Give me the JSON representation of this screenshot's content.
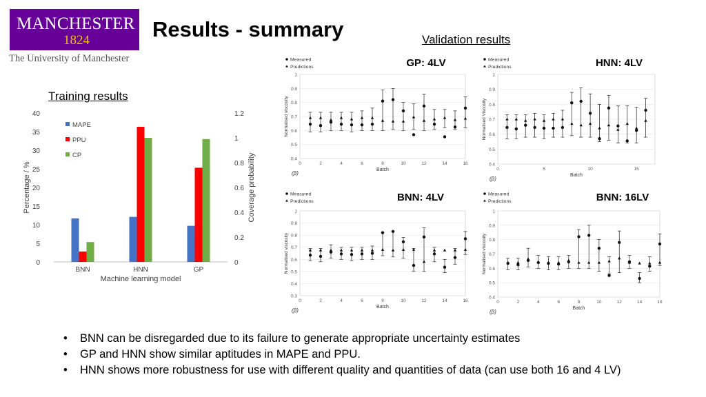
{
  "logo": {
    "main": "MANCHESTER",
    "year": "1824",
    "university": "The University of Manchester"
  },
  "slide": {
    "title": "Results - summary",
    "validation_label": "Validation results",
    "training_label": "Training results"
  },
  "bullets": [
    "BNN can be disregarded due to its failure to generate appropriate uncertainty estimates",
    "GP and HNN show similar aptitudes in MAPE and PPU.",
    "HNN shows more robustness for use with different quality and quantities of data (can use both 16 and 4 LV)"
  ],
  "colors": {
    "mape": "#4472c4",
    "ppu": "#ff0000",
    "cp": "#70ad47",
    "logo_bg": "#660099",
    "logo_year": "#f1c400"
  },
  "chart_data": [
    {
      "type": "bar",
      "title": "",
      "categories": [
        "BNN",
        "HNN",
        "GP"
      ],
      "xlabel": "Machine learning model",
      "ylabel": "Percentage / %",
      "y2label": "Coverage probability",
      "ylim": [
        0,
        40
      ],
      "y2lim": [
        0,
        1.2
      ],
      "yticks": [
        "0",
        "5",
        "10",
        "15",
        "20",
        "25",
        "30",
        "35",
        "40"
      ],
      "y2ticks": [
        "0",
        "0.2",
        "0.4",
        "0.6",
        "0.8",
        "1",
        "1.2"
      ],
      "legend_position": "top-left",
      "series": [
        {
          "name": "MAPE",
          "axis": "left",
          "values": [
            11.7,
            12.1,
            9.7
          ]
        },
        {
          "name": "PPU",
          "axis": "left",
          "values": [
            2.8,
            36.3,
            25.3
          ]
        },
        {
          "name": "CP",
          "axis": "right",
          "values": [
            0.16,
            1.0,
            0.99
          ]
        }
      ]
    },
    {
      "type": "scatter",
      "title": "GP: 4LV",
      "subtitle": "(β)",
      "xlabel": "Batch",
      "ylabel": "Normalised viscosity",
      "xlim": [
        0,
        16
      ],
      "ylim": [
        0.4,
        1.0
      ],
      "xticks": [
        "0",
        "2",
        "4",
        "6",
        "8",
        "10",
        "12",
        "14",
        "16"
      ],
      "yticks": [
        "0.4",
        "0.5",
        "0.6",
        "0.7",
        "0.8",
        "0.9",
        "1"
      ],
      "legend": [
        "Measured",
        "Predictions"
      ],
      "x": [
        1,
        2,
        3,
        4,
        5,
        6,
        7,
        8,
        9,
        10,
        11,
        12,
        13,
        14,
        15,
        16
      ],
      "measured": [
        0.645,
        0.635,
        0.66,
        0.645,
        0.64,
        0.64,
        0.645,
        0.81,
        0.82,
        0.74,
        0.57,
        0.775,
        0.645,
        0.555,
        0.625,
        0.76
      ],
      "predictions": [
        0.69,
        0.69,
        0.675,
        0.69,
        0.68,
        0.69,
        0.69,
        0.67,
        0.665,
        0.665,
        0.695,
        0.67,
        0.68,
        0.69,
        0.675,
        0.685
      ],
      "err_low": [
        0.59,
        0.59,
        0.6,
        0.6,
        0.59,
        0.6,
        0.6,
        0.6,
        0.61,
        0.6,
        0.61,
        0.6,
        0.61,
        0.62,
        0.61,
        0.62
      ],
      "err_high": [
        0.73,
        0.73,
        0.73,
        0.73,
        0.73,
        0.74,
        0.76,
        0.89,
        0.9,
        0.8,
        0.79,
        0.86,
        0.75,
        0.75,
        0.74,
        0.84
      ]
    },
    {
      "type": "scatter",
      "title": "HNN: 4LV",
      "subtitle": "(β)",
      "xlabel": "Batch",
      "ylabel": "Normalised Viscosity",
      "xlim": [
        0,
        17
      ],
      "ylim": [
        0.4,
        1.0
      ],
      "xticks": [
        "0",
        "5",
        "10",
        "15"
      ],
      "yticks": [
        "0.4",
        "0.5",
        "0.6",
        "0.7",
        "0.8",
        "0.9",
        "1"
      ],
      "legend": [
        "Measured",
        "Predictions"
      ],
      "x": [
        1,
        2,
        3,
        4,
        5,
        6,
        7,
        8,
        9,
        10,
        11,
        12,
        13,
        14,
        15,
        16
      ],
      "measured": [
        0.645,
        0.635,
        0.66,
        0.645,
        0.64,
        0.64,
        0.645,
        0.81,
        0.82,
        0.74,
        0.57,
        0.775,
        0.655,
        0.555,
        0.625,
        0.76
      ],
      "predictions": [
        0.7,
        0.7,
        0.69,
        0.7,
        0.69,
        0.7,
        0.7,
        0.67,
        0.66,
        0.67,
        0.64,
        0.66,
        0.63,
        0.67,
        0.64,
        0.69
      ],
      "err_low": [
        0.57,
        0.57,
        0.58,
        0.58,
        0.57,
        0.58,
        0.58,
        0.59,
        0.58,
        0.58,
        0.55,
        0.56,
        0.54,
        0.54,
        0.54,
        0.58
      ],
      "err_high": [
        0.73,
        0.73,
        0.73,
        0.74,
        0.73,
        0.74,
        0.76,
        0.88,
        0.91,
        0.87,
        0.8,
        0.86,
        0.79,
        0.79,
        0.78,
        0.84
      ]
    },
    {
      "type": "scatter",
      "title": "BNN: 4LV",
      "subtitle": "(β)",
      "xlabel": "Batch",
      "ylabel": "Normalised viscosity",
      "xlim": [
        0,
        16
      ],
      "ylim": [
        0.3,
        1.0
      ],
      "xticks": [
        "0",
        "2",
        "4",
        "6",
        "8",
        "10",
        "12",
        "14",
        "16"
      ],
      "yticks": [
        "0.3",
        "0.4",
        "0.5",
        "0.6",
        "0.7",
        "0.8",
        "0.9",
        "1"
      ],
      "legend": [
        "Measured",
        "Predictions"
      ],
      "x": [
        1,
        2,
        3,
        4,
        5,
        6,
        7,
        8,
        9,
        10,
        11,
        12,
        13,
        14,
        15,
        16
      ],
      "measured": [
        0.635,
        0.625,
        0.66,
        0.645,
        0.64,
        0.645,
        0.65,
        0.82,
        0.83,
        0.745,
        0.55,
        0.785,
        0.645,
        0.535,
        0.615,
        0.77
      ],
      "predictions": [
        0.675,
        0.675,
        0.675,
        0.675,
        0.675,
        0.675,
        0.675,
        0.68,
        0.675,
        0.68,
        0.68,
        0.58,
        0.675,
        0.675,
        0.675,
        0.68
      ],
      "err_low": [
        0.59,
        0.58,
        0.61,
        0.6,
        0.59,
        0.6,
        0.6,
        0.63,
        0.62,
        0.61,
        0.5,
        0.5,
        0.58,
        0.49,
        0.56,
        0.64
      ],
      "err_high": [
        0.69,
        0.69,
        0.72,
        0.7,
        0.7,
        0.7,
        0.71,
        0.82,
        0.83,
        0.78,
        0.69,
        0.86,
        0.7,
        0.6,
        0.69,
        0.83
      ]
    },
    {
      "type": "scatter",
      "title": "BNN: 16LV",
      "subtitle": "(β)",
      "xlabel": "Batch",
      "ylabel": "Normalised viscosity",
      "xlim": [
        0,
        16
      ],
      "ylim": [
        0.4,
        1.0
      ],
      "xticks": [
        "0",
        "2",
        "4",
        "6",
        "8",
        "10",
        "12",
        "14",
        "16"
      ],
      "yticks": [
        "0.4",
        "0.5",
        "0.6",
        "0.7",
        "0.8",
        "0.9",
        "1"
      ],
      "legend": [
        "Measured",
        "Predictions"
      ],
      "x": [
        1,
        2,
        3,
        4,
        5,
        6,
        7,
        8,
        9,
        10,
        11,
        12,
        13,
        14,
        15,
        16
      ],
      "measured": [
        0.635,
        0.625,
        0.655,
        0.64,
        0.635,
        0.63,
        0.645,
        0.82,
        0.83,
        0.74,
        0.55,
        0.78,
        0.645,
        0.53,
        0.615,
        0.77
      ],
      "predictions": [
        0.64,
        0.64,
        0.665,
        0.645,
        0.64,
        0.64,
        0.655,
        0.64,
        0.64,
        0.64,
        0.65,
        0.67,
        0.64,
        0.635,
        0.635,
        0.64
      ],
      "err_low": [
        0.59,
        0.59,
        0.61,
        0.6,
        0.59,
        0.59,
        0.6,
        0.6,
        0.6,
        0.58,
        0.56,
        0.57,
        0.6,
        0.5,
        0.58,
        0.62
      ],
      "err_high": [
        0.67,
        0.67,
        0.74,
        0.69,
        0.68,
        0.68,
        0.69,
        0.87,
        0.9,
        0.8,
        0.68,
        0.86,
        0.69,
        0.57,
        0.68,
        0.84
      ]
    }
  ]
}
